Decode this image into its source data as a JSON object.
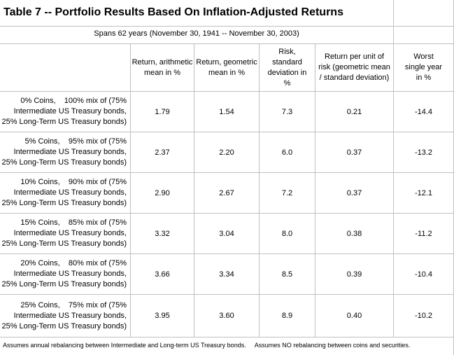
{
  "title": "Table 7 -- Portfolio Results Based On Inflation-Adjusted Returns",
  "subtitle": "Spans 62 years (November 30, 1941 -- November 30, 2003)",
  "headers": [
    "Return, arithmetic mean in %",
    "Return, geometric mean in %",
    "Risk, standard deviation in %",
    "Return per unit of risk (geometric mean / standard deviation)",
    "Worst single year in %"
  ],
  "rows": [
    {
      "label": [
        "0% Coins,    100% mix of (75%",
        "Intermediate US Treasury bonds,",
        "25% Long-Term US Treasury bonds)"
      ],
      "values": [
        "1.79",
        "1.54",
        "7.3",
        "0.21",
        "-14.4"
      ]
    },
    {
      "label": [
        "5% Coins,    95% mix of (75%",
        "Intermediate US Treasury bonds,",
        "25% Long-Term US Treasury bonds)"
      ],
      "values": [
        "2.37",
        "2.20",
        "6.0",
        "0.37",
        "-13.2"
      ]
    },
    {
      "label": [
        "10% Coins,    90% mix of (75%",
        "Intermediate US Treasury bonds,",
        "25% Long-Term US Treasury bonds)"
      ],
      "values": [
        "2.90",
        "2.67",
        "7.2",
        "0.37",
        "-12.1"
      ]
    },
    {
      "label": [
        "15% Coins,    85% mix of (75%",
        "Intermediate US Treasury bonds,",
        "25% Long-Term US Treasury bonds)"
      ],
      "values": [
        "3.32",
        "3.04",
        "8.0",
        "0.38",
        "-11.2"
      ]
    },
    {
      "label": [
        "20% Coins,    80% mix of (75%",
        "Intermediate US Treasury bonds,",
        "25% Long-Term US Treasury bonds)"
      ],
      "values": [
        "3.66",
        "3.34",
        "8.5",
        "0.39",
        "-10.4"
      ]
    },
    {
      "label": [
        "25% Coins,    75% mix of (75%",
        "Intermediate US Treasury bonds,",
        "25% Long-Term US Treasury bonds)"
      ],
      "values": [
        "3.95",
        "3.60",
        "8.9",
        "0.40",
        "-10.2"
      ]
    }
  ],
  "notes": [
    "Assumes annual rebalancing between Intermediate and Long-term US Treasury bonds.",
    "Assumes NO rebalancing between coins and securities."
  ]
}
